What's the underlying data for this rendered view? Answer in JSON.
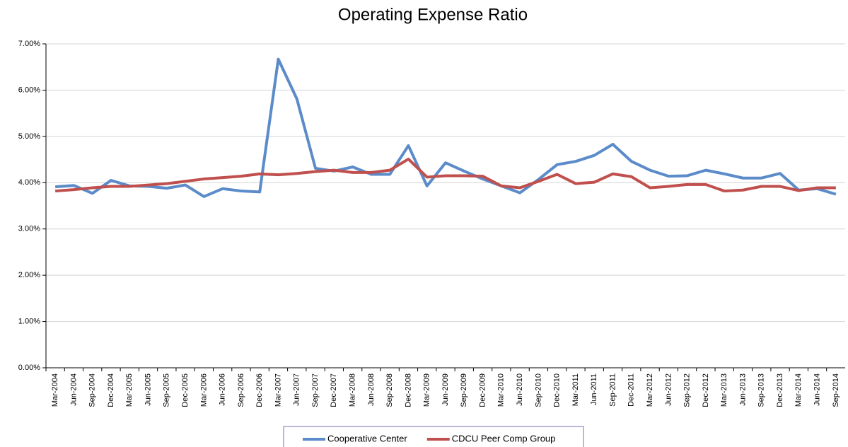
{
  "chart_data": {
    "type": "line",
    "title": "Operating Expense Ratio",
    "categories": [
      "Mar-2004",
      "Jun-2004",
      "Sep-2004",
      "Dec-2004",
      "Mar-2005",
      "Jun-2005",
      "Sep-2005",
      "Dec-2005",
      "Mar-2006",
      "Jun-2006",
      "Sep-2006",
      "Dec-2006",
      "Mar-2007",
      "Jun-2007",
      "Sep-2007",
      "Dec-2007",
      "Mar-2008",
      "Jun-2008",
      "Sep-2008",
      "Dec-2008",
      "Mar-2009",
      "Jun-2009",
      "Sep-2009",
      "Dec-2009",
      "Mar-2010",
      "Jun-2010",
      "Sep-2010",
      "Dec-2010",
      "Mar-2011",
      "Jun-2011",
      "Sep-2011",
      "Dec-2011",
      "Mar-2012",
      "Jun-2012",
      "Sep-2012",
      "Dec-2012",
      "Mar-2013",
      "Jun-2013",
      "Sep-2013",
      "Dec-2013",
      "Mar-2014",
      "Jun-2014",
      "Sep-2014"
    ],
    "series": [
      {
        "name": "Cooperative Center",
        "color": "#5b8bc9",
        "values": [
          3.91,
          3.94,
          3.77,
          4.05,
          3.93,
          3.92,
          3.88,
          3.95,
          3.7,
          3.87,
          3.82,
          3.8,
          6.67,
          5.81,
          4.31,
          4.25,
          4.34,
          4.18,
          4.18,
          4.8,
          3.93,
          4.43,
          4.25,
          4.08,
          3.93,
          3.78,
          4.07,
          4.39,
          4.46,
          4.59,
          4.83,
          4.46,
          4.27,
          4.14,
          4.15,
          4.27,
          4.19,
          4.1,
          4.1,
          4.2,
          3.84,
          3.87,
          3.75
        ]
      },
      {
        "name": "CDCU Peer Comp Group",
        "color": "#c0504d",
        "values": [
          3.82,
          3.85,
          3.89,
          3.92,
          3.92,
          3.95,
          3.98,
          4.03,
          4.08,
          4.11,
          4.14,
          4.19,
          4.17,
          4.2,
          4.24,
          4.27,
          4.22,
          4.22,
          4.27,
          4.51,
          4.12,
          4.15,
          4.15,
          4.14,
          3.93,
          3.89,
          4.03,
          4.18,
          3.98,
          4.01,
          4.19,
          4.13,
          3.89,
          3.92,
          3.96,
          3.96,
          3.82,
          3.84,
          3.92,
          3.92,
          3.83,
          3.89,
          3.89
        ]
      }
    ],
    "ylim": [
      0,
      7
    ],
    "yticks": [
      {
        "value": 0,
        "label": "0.00%"
      },
      {
        "value": 1,
        "label": "1.00%"
      },
      {
        "value": 2,
        "label": "2.00%"
      },
      {
        "value": 3,
        "label": "3.00%"
      },
      {
        "value": 4,
        "label": "4.00%"
      },
      {
        "value": 5,
        "label": "5.00%"
      },
      {
        "value": 6,
        "label": "6.00%"
      },
      {
        "value": 7,
        "label": "7.00%"
      }
    ],
    "grid": true,
    "legend": "bottom"
  }
}
